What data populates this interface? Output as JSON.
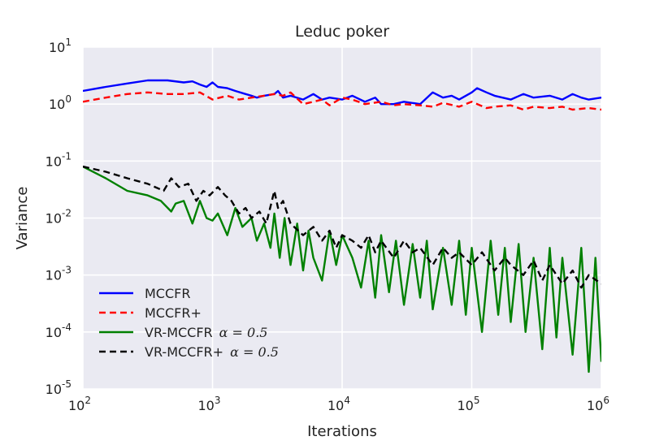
{
  "chart_data": {
    "type": "line",
    "title": "Leduc poker",
    "xlabel": "Iterations",
    "ylabel": "Variance",
    "xscale": "log",
    "yscale": "log",
    "xlim": [
      100,
      1000000
    ],
    "ylim": [
      1e-05,
      10
    ],
    "grid": true,
    "background": "#eaeaf2",
    "legend_position": "lower-left",
    "x_ticks": [
      {
        "base": "10",
        "exp": "2",
        "value": 100
      },
      {
        "base": "10",
        "exp": "3",
        "value": 1000
      },
      {
        "base": "10",
        "exp": "4",
        "value": 10000
      },
      {
        "base": "10",
        "exp": "5",
        "value": 100000
      },
      {
        "base": "10",
        "exp": "6",
        "value": 1000000
      }
    ],
    "y_ticks": [
      {
        "base": "10",
        "exp": "1",
        "value": 10
      },
      {
        "base": "10",
        "exp": "0",
        "value": 1
      },
      {
        "base": "10",
        "exp": "-1",
        "value": 0.1
      },
      {
        "base": "10",
        "exp": "-2",
        "value": 0.01
      },
      {
        "base": "10",
        "exp": "-3",
        "value": 0.001
      },
      {
        "base": "10",
        "exp": "-4",
        "value": 0.0001
      },
      {
        "base": "10",
        "exp": "-5",
        "value": 1e-05
      }
    ],
    "series": [
      {
        "name": "MCCFR",
        "alpha_label": "",
        "color": "#0000ff",
        "dash": "solid",
        "x": [
          100,
          150,
          220,
          316,
          450,
          600,
          700,
          800,
          900,
          1000,
          1100,
          1300,
          1500,
          1800,
          2000,
          2200,
          2500,
          3000,
          3200,
          3500,
          4000,
          5000,
          6000,
          7000,
          8000,
          10000,
          12000,
          15000,
          18000,
          20000,
          25000,
          30000,
          40000,
          50000,
          60000,
          70000,
          80000,
          100000,
          110000,
          130000,
          150000,
          200000,
          250000,
          300000,
          400000,
          500000,
          600000,
          700000,
          800000,
          1000000
        ],
        "y": [
          1.7,
          2.0,
          2.3,
          2.6,
          2.6,
          2.4,
          2.5,
          2.2,
          2.0,
          2.4,
          2.0,
          1.9,
          1.7,
          1.5,
          1.4,
          1.3,
          1.4,
          1.5,
          1.7,
          1.3,
          1.4,
          1.2,
          1.5,
          1.2,
          1.3,
          1.2,
          1.4,
          1.1,
          1.3,
          1.0,
          1.0,
          1.1,
          1.0,
          1.6,
          1.3,
          1.4,
          1.2,
          1.6,
          1.9,
          1.6,
          1.4,
          1.2,
          1.5,
          1.3,
          1.4,
          1.2,
          1.5,
          1.3,
          1.2,
          1.3
        ]
      },
      {
        "name": "MCCFR+",
        "alpha_label": "",
        "color": "#ff0000",
        "dash": "dashed",
        "x": [
          100,
          150,
          220,
          316,
          450,
          600,
          800,
          1000,
          1300,
          1600,
          2000,
          2500,
          3000,
          3500,
          4000,
          5000,
          6000,
          7000,
          8000,
          10000,
          12000,
          15000,
          20000,
          25000,
          30000,
          40000,
          50000,
          60000,
          80000,
          100000,
          130000,
          150000,
          200000,
          250000,
          300000,
          400000,
          500000,
          600000,
          800000,
          1000000
        ],
        "y": [
          1.1,
          1.3,
          1.5,
          1.6,
          1.5,
          1.5,
          1.6,
          1.2,
          1.4,
          1.2,
          1.3,
          1.4,
          1.5,
          1.4,
          1.6,
          1.0,
          1.1,
          1.2,
          0.95,
          1.3,
          1.2,
          1.0,
          1.1,
          0.95,
          1.0,
          0.95,
          0.9,
          1.05,
          0.9,
          1.1,
          0.85,
          0.9,
          0.95,
          0.8,
          0.9,
          0.85,
          0.9,
          0.8,
          0.85,
          0.8
        ]
      },
      {
        "name": "VR-MCCFR",
        "alpha_label": "α = 0.5",
        "color": "#008000",
        "dash": "solid",
        "x": [
          100,
          150,
          220,
          316,
          400,
          480,
          520,
          600,
          700,
          800,
          900,
          1000,
          1100,
          1300,
          1500,
          1700,
          2000,
          2200,
          2500,
          2800,
          3000,
          3300,
          3600,
          4000,
          4500,
          5000,
          5500,
          6000,
          7000,
          8000,
          9000,
          10000,
          12000,
          14000,
          16000,
          18000,
          20000,
          23000,
          26000,
          30000,
          35000,
          40000,
          45000,
          50000,
          60000,
          70000,
          80000,
          90000,
          100000,
          120000,
          140000,
          160000,
          180000,
          200000,
          230000,
          260000,
          300000,
          350000,
          400000,
          450000,
          500000,
          600000,
          700000,
          800000,
          900000,
          1000000
        ],
        "y": [
          0.08,
          0.05,
          0.03,
          0.025,
          0.02,
          0.013,
          0.018,
          0.02,
          0.008,
          0.02,
          0.01,
          0.009,
          0.012,
          0.005,
          0.015,
          0.007,
          0.01,
          0.004,
          0.008,
          0.003,
          0.012,
          0.002,
          0.01,
          0.0015,
          0.008,
          0.0012,
          0.006,
          0.002,
          0.0008,
          0.006,
          0.0015,
          0.005,
          0.002,
          0.0006,
          0.004,
          0.0004,
          0.005,
          0.0005,
          0.004,
          0.0003,
          0.0035,
          0.0004,
          0.004,
          0.00025,
          0.003,
          0.0003,
          0.004,
          0.0002,
          0.003,
          0.0001,
          0.004,
          0.0002,
          0.003,
          0.00015,
          0.0035,
          0.0001,
          0.002,
          5e-05,
          0.003,
          8e-05,
          0.002,
          4e-05,
          0.003,
          2e-05,
          0.002,
          3e-05
        ]
      },
      {
        "name": "VR-MCCFR+",
        "alpha_label": "α = 0.5",
        "color": "#000000",
        "dash": "dashed",
        "x": [
          100,
          150,
          220,
          316,
          420,
          480,
          550,
          650,
          750,
          850,
          950,
          1100,
          1250,
          1400,
          1600,
          1800,
          2000,
          2300,
          2600,
          3000,
          3200,
          3500,
          4000,
          5000,
          6000,
          7000,
          8000,
          9000,
          10000,
          12000,
          14000,
          16000,
          18000,
          20000,
          25000,
          30000,
          35000,
          40000,
          50000,
          60000,
          70000,
          80000,
          100000,
          120000,
          150000,
          180000,
          200000,
          250000,
          300000,
          350000,
          400000,
          500000,
          600000,
          700000,
          800000,
          1000000
        ],
        "y": [
          0.08,
          0.065,
          0.05,
          0.04,
          0.03,
          0.05,
          0.035,
          0.04,
          0.02,
          0.03,
          0.025,
          0.035,
          0.025,
          0.02,
          0.012,
          0.015,
          0.01,
          0.013,
          0.008,
          0.03,
          0.015,
          0.02,
          0.008,
          0.005,
          0.007,
          0.004,
          0.006,
          0.003,
          0.005,
          0.004,
          0.003,
          0.005,
          0.0025,
          0.004,
          0.002,
          0.004,
          0.0025,
          0.003,
          0.0015,
          0.003,
          0.002,
          0.0025,
          0.0015,
          0.0025,
          0.0012,
          0.002,
          0.0015,
          0.001,
          0.0018,
          0.0008,
          0.0015,
          0.0007,
          0.0012,
          0.0006,
          0.001,
          0.0007
        ]
      }
    ]
  }
}
